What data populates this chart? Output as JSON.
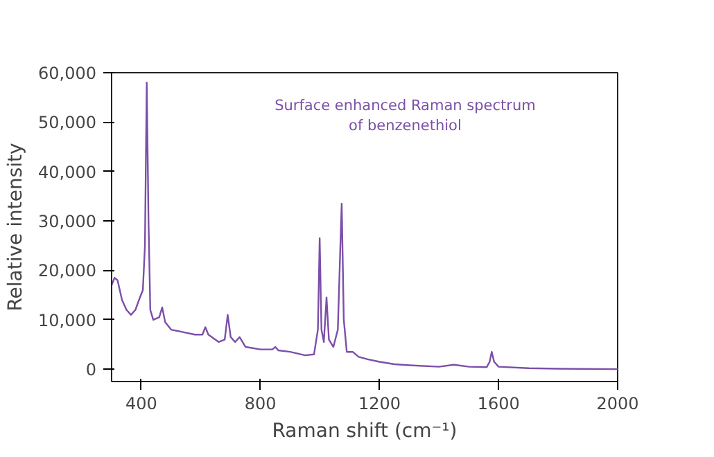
{
  "chart_data": {
    "type": "line",
    "xlabel": "Raman shift (cm⁻¹)",
    "ylabel": "Relative intensity",
    "annotations": [
      "Surface enhanced Raman spectrum\nof benzenethiol"
    ],
    "x": [
      300,
      310,
      320,
      335,
      350,
      365,
      380,
      395,
      405,
      412,
      418,
      424,
      430,
      440,
      460,
      470,
      480,
      500,
      540,
      580,
      605,
      615,
      625,
      660,
      680,
      690,
      700,
      715,
      730,
      750,
      800,
      840,
      850,
      860,
      900,
      950,
      980,
      993,
      999,
      1005,
      1013,
      1022,
      1030,
      1045,
      1060,
      1068,
      1073,
      1080,
      1090,
      1110,
      1130,
      1160,
      1200,
      1250,
      1300,
      1400,
      1450,
      1500,
      1560,
      1570,
      1577,
      1585,
      1600,
      1700,
      1800,
      2000
    ],
    "series": [
      {
        "color": "#7b4fa8",
        "values": [
          17000,
          18500,
          18000,
          14000,
          12000,
          11000,
          12000,
          14500,
          16000,
          25000,
          58000,
          30000,
          12000,
          10000,
          10500,
          12500,
          9500,
          8000,
          7500,
          7000,
          7000,
          8500,
          7000,
          5500,
          6000,
          11000,
          6500,
          5500,
          6500,
          4500,
          4000,
          4000,
          4500,
          3800,
          3500,
          2800,
          3000,
          8000,
          26500,
          8000,
          5500,
          14500,
          6000,
          4500,
          8000,
          24000,
          33500,
          10000,
          3500,
          3500,
          2500,
          2000,
          1500,
          1000,
          800,
          500,
          900,
          500,
          400,
          1500,
          3500,
          1500,
          500,
          200,
          100,
          0
        ]
      }
    ],
    "xlim": [
      300,
      2000
    ],
    "ylim": [
      -2500,
      60000
    ],
    "xticks": [
      400,
      800,
      1200,
      1600,
      2000
    ],
    "yticks": [
      0,
      {
        "value": 10000,
        "label": "10,000"
      },
      {
        "value": 20000,
        "label": "20,000"
      },
      {
        "value": 30000,
        "label": "30,000"
      },
      {
        "value": 40000,
        "label": "40,000"
      },
      {
        "value": 50000,
        "label": "50,000"
      },
      {
        "value": 60000,
        "label": "60,000"
      }
    ],
    "grid": false,
    "marker": "none",
    "line_style": "solid"
  }
}
